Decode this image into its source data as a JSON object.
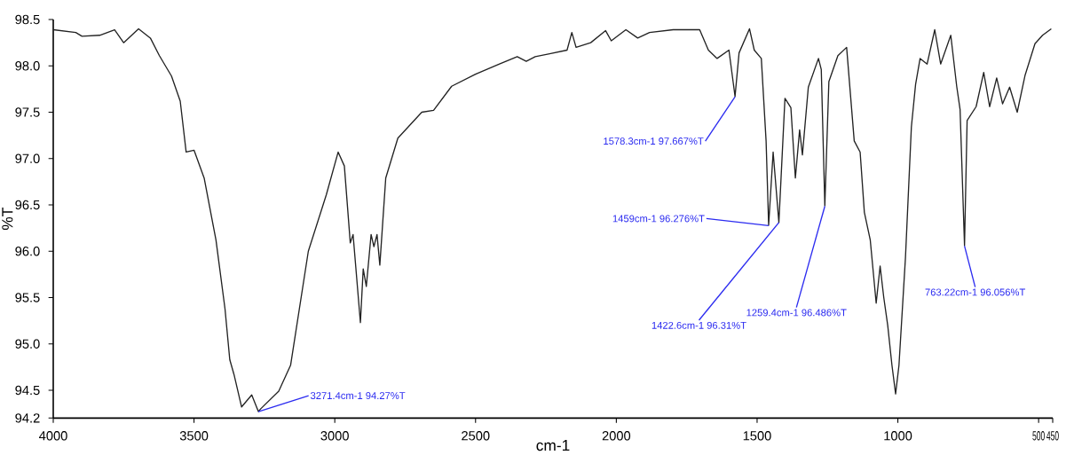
{
  "chart_data": {
    "type": "line",
    "xlabel": "cm-1",
    "ylabel": "%T",
    "xlim": [
      4000,
      450
    ],
    "ylim": [
      94.2,
      98.5
    ],
    "xticks": [
      4000,
      3500,
      3000,
      2500,
      2000,
      1500,
      1000,
      500,
      450
    ],
    "yticks": [
      94.2,
      94.5,
      {
        "value": 95.0,
        "label": "95.0"
      },
      95.5,
      {
        "value": 96.0,
        "label": "96.0"
      },
      96.5,
      {
        "value": 97.0,
        "label": "97.0"
      },
      97.5,
      {
        "value": 98.0,
        "label": "98.0"
      },
      98.5
    ],
    "grid": false,
    "marker": "none",
    "line_style": "solid",
    "annotations": [
      {
        "text": "3271.4cm-1 94.27%T",
        "x": 3271.4,
        "y": 94.27
      },
      {
        "text": "1578.3cm-1 97.667%T",
        "x": 1578.3,
        "y": 97.667
      },
      {
        "text": "1459cm-1 96.276%T",
        "x": 1459,
        "y": 96.276
      },
      {
        "text": "1422.6cm-1 96.31%T",
        "x": 1422.6,
        "y": 96.31
      },
      {
        "text": "1259.4cm-1 96.486%T",
        "x": 1259.4,
        "y": 96.486
      },
      {
        "text": "763.22cm-1 96.056%T",
        "x": 763.22,
        "y": 96.056
      }
    ],
    "series": [
      {
        "color": "#222222",
        "x": [
          4000,
          3920,
          3898,
          3835,
          3782,
          3750,
          3697,
          3655,
          3623,
          3580,
          3549,
          3528,
          3500,
          3464,
          3422,
          3390,
          3373,
          3358,
          3331,
          3295,
          3271.4,
          3263,
          3199,
          3157,
          3094,
          3030,
          2988,
          2966,
          2945,
          2935,
          2909,
          2899,
          2888,
          2871,
          2861,
          2850,
          2840,
          2819,
          2776,
          2691,
          2649,
          2585,
          2500,
          2415,
          2352,
          2320,
          2288,
          2237,
          2175,
          2158,
          2143,
          2091,
          2038,
          2018,
          1966,
          1924,
          1882,
          1798,
          1704,
          1673,
          1642,
          1600,
          1578.3,
          1564,
          1527,
          1510,
          1485,
          1468,
          1459,
          1443,
          1422.6,
          1401,
          1380,
          1364,
          1349,
          1339,
          1318,
          1282,
          1272,
          1259.4,
          1245,
          1213,
          1182,
          1155,
          1134,
          1119,
          1098,
          1077,
          1063,
          1050,
          1036,
          1021,
          1008,
          996,
          973,
          952,
          937,
          921,
          896,
          869,
          848,
          812,
          791,
          779,
          763.22,
          754,
          722,
          695,
          674,
          649,
          628,
          603,
          576,
          548,
          513,
          486,
          455
        ],
        "values": [
          98.39,
          98.36,
          98.32,
          98.33,
          98.39,
          98.25,
          98.4,
          98.3,
          98.11,
          97.89,
          97.62,
          97.07,
          97.09,
          96.79,
          96.12,
          95.38,
          94.83,
          94.67,
          94.32,
          94.45,
          94.27,
          94.3,
          94.49,
          94.77,
          96.0,
          96.61,
          97.07,
          96.92,
          96.09,
          96.18,
          95.23,
          95.81,
          95.62,
          96.18,
          96.05,
          96.18,
          95.85,
          96.79,
          97.22,
          97.5,
          97.52,
          97.78,
          97.91,
          98.02,
          98.1,
          98.05,
          98.1,
          98.13,
          98.17,
          98.36,
          98.2,
          98.25,
          98.38,
          98.27,
          98.39,
          98.3,
          98.36,
          98.39,
          98.39,
          98.17,
          98.08,
          98.17,
          97.67,
          98.14,
          98.4,
          98.17,
          98.08,
          97.19,
          96.28,
          97.07,
          96.31,
          97.65,
          97.55,
          96.79,
          97.31,
          97.04,
          97.77,
          98.08,
          97.96,
          96.49,
          97.83,
          98.11,
          98.2,
          97.19,
          97.07,
          96.42,
          96.12,
          95.44,
          95.84,
          95.5,
          95.2,
          94.77,
          94.46,
          94.77,
          95.93,
          97.34,
          97.8,
          98.08,
          98.02,
          98.39,
          98.02,
          98.33,
          97.78,
          97.53,
          96.06,
          97.41,
          97.56,
          97.93,
          97.56,
          97.87,
          97.59,
          97.77,
          97.5,
          97.9,
          98.24,
          98.33,
          98.4
        ]
      }
    ]
  }
}
